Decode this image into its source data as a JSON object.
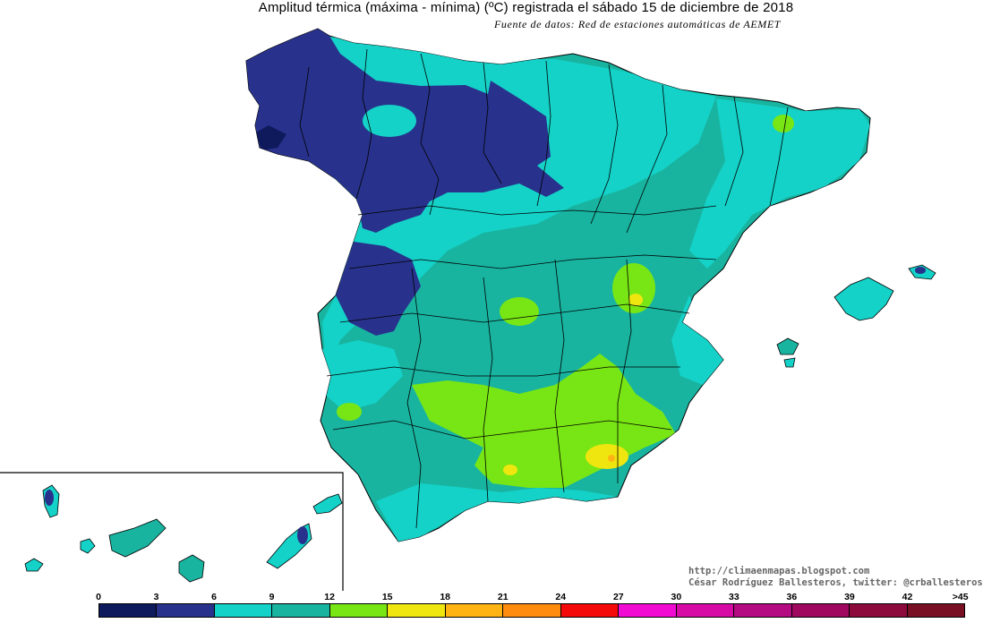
{
  "title": "Amplitud térmica (máxima - mínima) (ºC) registrada el sábado 15 de diciembre de 2018",
  "subtitle": "Fuente de datos: Red de estaciones automáticas de AEMET",
  "credits": {
    "line1": "http://climaenmapas.blogspot.com",
    "line2": "César Rodríguez Ballesteros, twitter: @crballesteros"
  },
  "legend": {
    "ticks": [
      "0",
      "3",
      "6",
      "9",
      "12",
      "15",
      "18",
      "21",
      "24",
      "27",
      "30",
      "33",
      "36",
      "39",
      "42",
      ">45"
    ],
    "colors": [
      "#0f1a5c",
      "#28328c",
      "#14d2c8",
      "#19b4a0",
      "#78e614",
      "#f0e60f",
      "#ffb414",
      "#ff8c0f",
      "#f50a0a",
      "#f00ad2",
      "#d70aa5",
      "#b40a82",
      "#a0085f",
      "#8c0a3c",
      "#780f23"
    ]
  },
  "colors": {
    "band_0_3": "#0f1a5c",
    "band_3_6": "#28328c",
    "band_6_9": "#14d2c8",
    "band_9_12": "#19b4a0",
    "band_12_15": "#78e614",
    "band_15_18": "#f0e60f",
    "band_18_21": "#ffb414"
  }
}
